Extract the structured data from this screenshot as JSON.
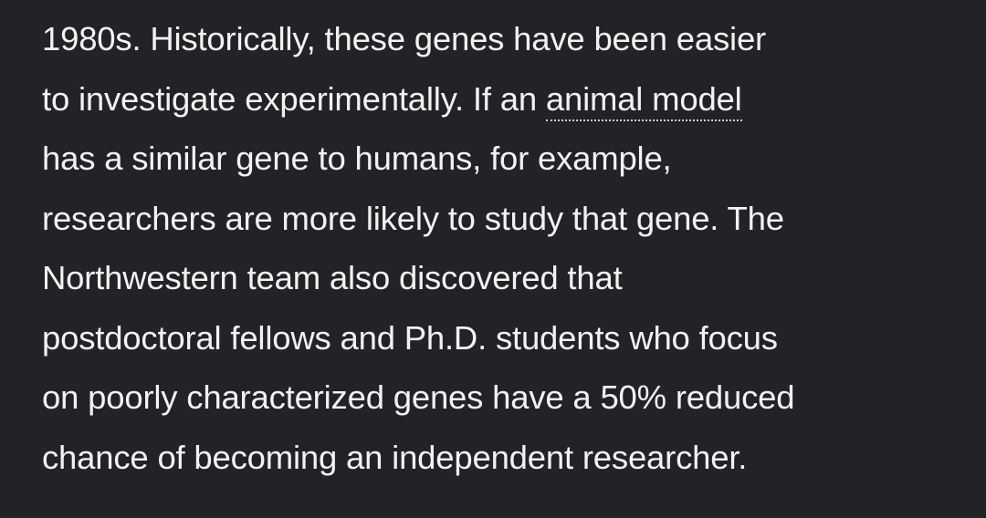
{
  "article": {
    "lines": [
      "1980s. Historically, these genes have been easier",
      "to investigate experimentally. If an ",
      "has a similar gene to humans, for example,",
      "researchers are more likely to study that gene. The",
      "Northwestern team also discovered that",
      "postdoctoral fellows and Ph.D. students who focus",
      "on poorly characterized genes have a 50% reduced",
      "chance of becoming an independent researcher."
    ],
    "link_text": "animal model"
  }
}
